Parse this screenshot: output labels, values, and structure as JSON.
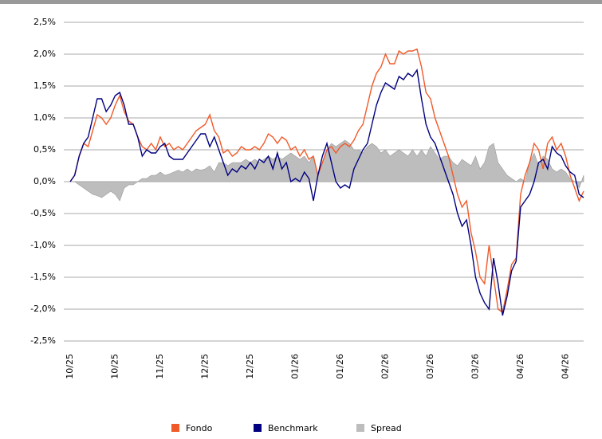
{
  "chart_data": {
    "type": "line",
    "categories": [
      "10/25",
      null,
      null,
      null,
      null,
      null,
      null,
      null,
      null,
      null,
      "10/25",
      null,
      null,
      null,
      null,
      null,
      null,
      null,
      null,
      null,
      "11/25",
      null,
      null,
      null,
      null,
      null,
      null,
      null,
      null,
      null,
      "12/25",
      null,
      null,
      null,
      null,
      null,
      null,
      null,
      null,
      null,
      "12/25",
      null,
      null,
      null,
      null,
      null,
      null,
      null,
      null,
      null,
      "01/26",
      null,
      null,
      null,
      null,
      null,
      null,
      null,
      null,
      null,
      "01/26",
      null,
      null,
      null,
      null,
      null,
      null,
      null,
      null,
      null,
      "02/26",
      null,
      null,
      null,
      null,
      null,
      null,
      null,
      null,
      null,
      "03/26",
      null,
      null,
      null,
      null,
      null,
      null,
      null,
      null,
      null,
      "03/26",
      null,
      null,
      null,
      null,
      null,
      null,
      null,
      null,
      null,
      "04/26",
      null,
      null,
      null,
      null,
      null,
      null,
      null,
      null,
      null,
      "04/26",
      null,
      null,
      null,
      null
    ],
    "series": [
      {
        "name": "Spread",
        "color": "#bdbdbd",
        "style": "area",
        "values": [
          0,
          0,
          -0.05,
          -0.1,
          -0.15,
          -0.2,
          -0.22,
          -0.25,
          -0.2,
          -0.15,
          -0.2,
          -0.3,
          -0.1,
          -0.05,
          -0.05,
          0,
          0.05,
          0.05,
          0.1,
          0.1,
          0.15,
          0.1,
          0.12,
          0.15,
          0.18,
          0.15,
          0.2,
          0.15,
          0.2,
          0.18,
          0.2,
          0.25,
          0.15,
          0.3,
          0.3,
          0.25,
          0.3,
          0.3,
          0.3,
          0.35,
          0.3,
          0.35,
          0.3,
          0.35,
          0.4,
          0.35,
          0.4,
          0.35,
          0.4,
          0.45,
          0.4,
          0.35,
          0.4,
          0.3,
          0.4,
          0.1,
          0.3,
          0.5,
          0.6,
          0.55,
          0.6,
          0.65,
          0.6,
          0.5,
          0.5,
          0.45,
          0.55,
          0.6,
          0.55,
          0.45,
          0.5,
          0.4,
          0.45,
          0.5,
          0.45,
          0.4,
          0.5,
          0.4,
          0.5,
          0.4,
          0.55,
          0.45,
          0.35,
          0.4,
          0.4,
          0.3,
          0.25,
          0.35,
          0.3,
          0.25,
          0.4,
          0.2,
          0.3,
          0.55,
          0.6,
          0.3,
          0.2,
          0.1,
          0.05,
          0,
          0.05,
          0,
          0.3,
          0.45,
          0.25,
          0.4,
          0.35,
          0.2,
          0.15,
          0.2,
          0.15,
          0.05,
          0,
          -0.1,
          0.1
        ]
      },
      {
        "name": "Fondo",
        "color": "#f05a28",
        "style": "line",
        "values": [
          0,
          0.1,
          0.4,
          0.6,
          0.55,
          0.8,
          1.05,
          1.0,
          0.9,
          1.0,
          1.2,
          1.35,
          1.1,
          0.95,
          0.9,
          0.7,
          0.55,
          0.5,
          0.6,
          0.5,
          0.7,
          0.55,
          0.6,
          0.5,
          0.55,
          0.5,
          0.6,
          0.7,
          0.8,
          0.85,
          0.9,
          1.05,
          0.8,
          0.7,
          0.45,
          0.5,
          0.4,
          0.45,
          0.55,
          0.5,
          0.5,
          0.55,
          0.5,
          0.6,
          0.75,
          0.7,
          0.6,
          0.7,
          0.65,
          0.5,
          0.55,
          0.4,
          0.5,
          0.35,
          0.4,
          0.1,
          0.3,
          0.5,
          0.55,
          0.45,
          0.55,
          0.6,
          0.55,
          0.65,
          0.8,
          0.9,
          1.2,
          1.5,
          1.7,
          1.8,
          2.0,
          1.85,
          1.85,
          2.05,
          2.0,
          2.05,
          2.05,
          2.08,
          1.8,
          1.4,
          1.3,
          1.0,
          0.8,
          0.6,
          0.4,
          0.1,
          -0.2,
          -0.4,
          -0.3,
          -0.8,
          -1.1,
          -1.5,
          -1.6,
          -1.0,
          -1.5,
          -2.0,
          -2.05,
          -1.7,
          -1.3,
          -1.2,
          -0.2,
          0.1,
          0.3,
          0.6,
          0.5,
          0.2,
          0.6,
          0.7,
          0.5,
          0.6,
          0.4,
          0.1,
          -0.1,
          -0.3,
          -0.15
        ]
      },
      {
        "name": "Benchmark",
        "color": "#000080",
        "style": "line",
        "values": [
          0,
          0.1,
          0.4,
          0.6,
          0.7,
          1.0,
          1.3,
          1.3,
          1.1,
          1.2,
          1.35,
          1.4,
          1.2,
          0.9,
          0.9,
          0.7,
          0.4,
          0.5,
          0.45,
          0.45,
          0.55,
          0.6,
          0.4,
          0.35,
          0.35,
          0.35,
          0.45,
          0.55,
          0.65,
          0.75,
          0.75,
          0.55,
          0.7,
          0.5,
          0.3,
          0.1,
          0.2,
          0.15,
          0.25,
          0.2,
          0.3,
          0.2,
          0.35,
          0.3,
          0.4,
          0.2,
          0.45,
          0.2,
          0.3,
          0,
          0.05,
          0,
          0.15,
          0.05,
          -0.3,
          0.1,
          0.4,
          0.6,
          0.3,
          0,
          -0.1,
          -0.05,
          -0.1,
          0.2,
          0.35,
          0.5,
          0.6,
          0.9,
          1.2,
          1.4,
          1.55,
          1.5,
          1.45,
          1.65,
          1.6,
          1.7,
          1.65,
          1.75,
          1.3,
          0.9,
          0.7,
          0.6,
          0.4,
          0.2,
          0,
          -0.2,
          -0.5,
          -0.7,
          -0.6,
          -1.0,
          -1.5,
          -1.75,
          -1.9,
          -2.0,
          -1.2,
          -1.6,
          -2.1,
          -1.8,
          -1.4,
          -1.25,
          -0.4,
          -0.3,
          -0.2,
          0,
          0.3,
          0.35,
          0.2,
          0.55,
          0.45,
          0.4,
          0.25,
          0.15,
          0.1,
          -0.2,
          -0.25
        ]
      }
    ],
    "legend_order": [
      1,
      2,
      0
    ],
    "ylim": [
      -2.5,
      2.5
    ],
    "yticks": [
      {
        "value": 2.5,
        "label": "2,5%"
      },
      {
        "value": 2.0,
        "label": "2,0%"
      },
      {
        "value": 1.5,
        "label": "1,5%"
      },
      {
        "value": 1.0,
        "label": "1,0%"
      },
      {
        "value": 0.5,
        "label": "0,5%"
      },
      {
        "value": 0,
        "label": "0,0%"
      },
      {
        "value": -0.5,
        "label": "-0,5%"
      },
      {
        "value": -1.0,
        "label": "-1,0%"
      },
      {
        "value": -1.5,
        "label": "-1,5%"
      },
      {
        "value": -2.0,
        "label": "-2,0%"
      },
      {
        "value": -2.5,
        "label": "-2,5%"
      }
    ],
    "grid": true,
    "legend": "bottom"
  }
}
